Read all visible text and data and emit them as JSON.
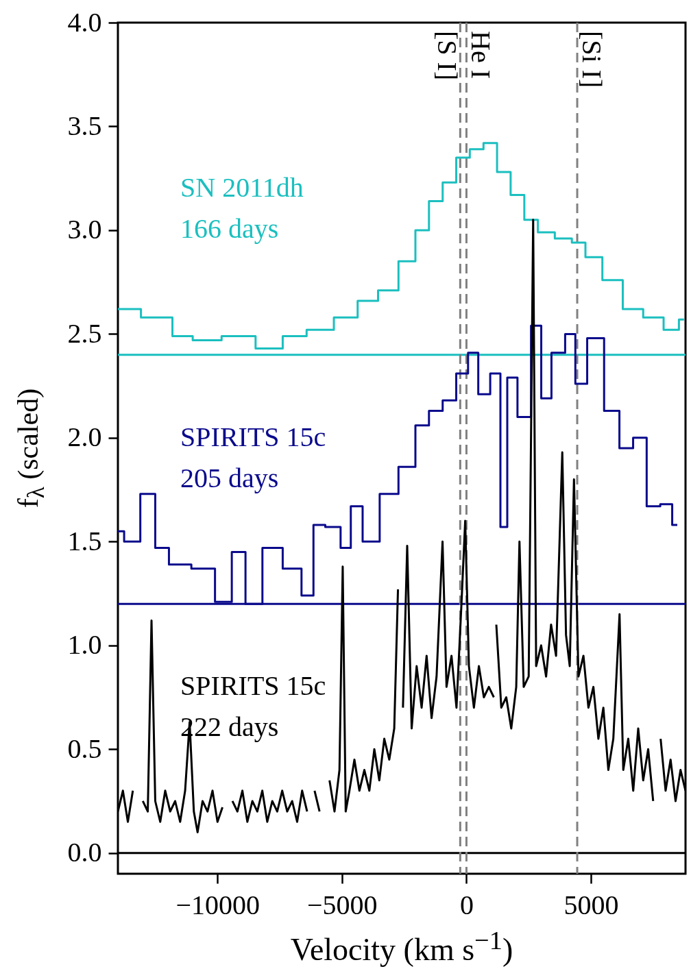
{
  "chart_data": {
    "type": "step",
    "xlabel": "Velocity (km s$^{−1}$)",
    "ylabel": "f$_{λ}$ (scaled)",
    "xlim": [
      -14000,
      8800
    ],
    "ylim": [
      -0.1,
      4.0
    ],
    "xticks": [
      {
        "value": -10000,
        "label": "−10000"
      },
      {
        "value": -5000,
        "label": "−5000"
      },
      0,
      5000
    ],
    "yticks": [
      {
        "value": 0,
        "label": "0.0"
      },
      {
        "value": 0.5,
        "label": "0.5"
      },
      {
        "value": 1,
        "label": "1.0"
      },
      {
        "value": 1.5,
        "label": "1.5"
      },
      {
        "value": 2,
        "label": "2.0"
      },
      {
        "value": 2.5,
        "label": "2.5"
      },
      {
        "value": 3,
        "label": "3.0"
      },
      {
        "value": 3.5,
        "label": "3.5"
      },
      {
        "value": 4,
        "label": "4.0"
      }
    ],
    "grid": false,
    "series": [
      {
        "name": "SN 2011dh\n166 days",
        "color": "#1bbfbf",
        "x": [
          -14000,
          -12150,
          -11470,
          -10520,
          -9150,
          -7790,
          -6970,
          -5870,
          -4780,
          -3960,
          -3140,
          -2320,
          -1780,
          -1230,
          -680,
          -140,
          410,
          960,
          1500,
          2050,
          2600,
          3140,
          3960,
          4510,
          5050,
          5870,
          6690,
          7510,
          8330,
          8740
        ],
        "values": [
          2.62,
          2.58,
          2.49,
          2.47,
          2.49,
          2.43,
          2.49,
          2.52,
          2.58,
          2.66,
          2.71,
          2.85,
          3.0,
          3.14,
          3.23,
          3.35,
          3.39,
          3.42,
          3.28,
          3.17,
          3.05,
          2.99,
          2.96,
          2.94,
          2.87,
          2.76,
          2.62,
          2.58,
          2.52,
          2.57
        ]
      },
      {
        "name": "SPIRITS 15c\n205 days",
        "color": "#0a0a8c",
        "x": [
          -14000,
          -13500,
          -12700,
          -12300,
          -11600,
          -10500,
          -9700,
          -9150,
          -8600,
          -7790,
          -6970,
          -6280,
          -6010,
          -5330,
          -4780,
          -4510,
          -3830,
          -3140,
          -2320,
          -1780,
          -1230,
          -680,
          -140,
          270,
          680,
          1230,
          1500,
          1780,
          2320,
          2870,
          3140,
          3690,
          4240,
          4510,
          5190,
          5870,
          6420,
          6970,
          7510,
          8060,
          8470
        ],
        "values": [
          1.55,
          1.5,
          1.73,
          1.47,
          1.39,
          1.37,
          1.21,
          1.45,
          1.2,
          1.47,
          1.37,
          1.24,
          1.58,
          1.57,
          1.47,
          1.67,
          1.5,
          1.73,
          1.86,
          2.06,
          2.13,
          2.18,
          2.31,
          2.41,
          2.21,
          2.31,
          1.57,
          2.29,
          2.1,
          2.54,
          2.19,
          2.41,
          2.5,
          2.26,
          2.48,
          2.13,
          1.95,
          2.0,
          1.67,
          1.68,
          1.58
        ]
      },
      {
        "name": "SPIRITS 15c\n222 days",
        "color": "#000000",
        "type": "line",
        "x": [
          -14000,
          -13800,
          -13600,
          -13400,
          -13200,
          -13000,
          -12800,
          -12650,
          -12500,
          -12300,
          -12100,
          -11900,
          -11700,
          -11500,
          -11300,
          -11120,
          -10950,
          -10800,
          -10600,
          -10400,
          -10200,
          -10000,
          -9800,
          -9560,
          -9400,
          -9200,
          -9000,
          -8800,
          -8600,
          -8400,
          -8200,
          -8000,
          -7800,
          -7600,
          -7400,
          -7200,
          -7000,
          -6800,
          -6600,
          -6400,
          -6280,
          -6100,
          -5900,
          -5700,
          -5500,
          -5300,
          -5100,
          -4970,
          -4850,
          -4700,
          -4500,
          -4300,
          -4100,
          -3900,
          -3700,
          -3500,
          -3300,
          -3100,
          -2900,
          -2750,
          -2700,
          -2550,
          -2380,
          -2200,
          -2000,
          -1800,
          -1600,
          -1400,
          -1200,
          -960,
          -800,
          -600,
          -400,
          -200,
          -50,
          100,
          300,
          500,
          700,
          900,
          1100,
          1150,
          1200,
          1400,
          1600,
          1800,
          2000,
          2130,
          2300,
          2500,
          2680,
          2800,
          3000,
          3200,
          3400,
          3600,
          3850,
          4000,
          4150,
          4320,
          4500,
          4700,
          4900,
          5100,
          5300,
          5500,
          5700,
          5900,
          6150,
          6300,
          6500,
          6700,
          6900,
          7100,
          7300,
          7500,
          7650,
          7800,
          8000,
          8200,
          8400,
          8600,
          8800
        ],
        "values": [
          0.2,
          0.3,
          0.15,
          0.3,
          null,
          0.25,
          0.2,
          1.12,
          0.25,
          0.15,
          0.3,
          0.2,
          0.25,
          0.15,
          0.3,
          0.63,
          0.2,
          0.1,
          0.25,
          0.2,
          0.3,
          0.15,
          0.22,
          null,
          0.25,
          0.2,
          0.3,
          0.15,
          0.25,
          0.2,
          0.3,
          0.15,
          0.25,
          0.2,
          0.3,
          0.2,
          0.25,
          0.15,
          0.3,
          0.2,
          null,
          0.3,
          0.2,
          null,
          0.35,
          0.2,
          0.4,
          1.38,
          0.2,
          0.3,
          0.45,
          0.3,
          0.4,
          0.3,
          0.5,
          0.35,
          0.55,
          0.45,
          0.6,
          1.27,
          null,
          0.7,
          1.48,
          0.6,
          0.9,
          0.7,
          0.95,
          0.65,
          0.85,
          1.5,
          0.8,
          0.95,
          0.7,
          1.2,
          1.6,
          0.9,
          0.7,
          0.9,
          0.75,
          0.8,
          0.75,
          null,
          1.1,
          0.7,
          0.75,
          0.6,
          0.8,
          1.5,
          0.8,
          0.85,
          3.05,
          0.9,
          1.0,
          0.85,
          1.1,
          0.95,
          1.93,
          1.05,
          0.9,
          1.8,
          0.85,
          0.95,
          0.7,
          0.8,
          0.55,
          0.7,
          0.4,
          0.55,
          1.15,
          0.4,
          0.55,
          0.3,
          0.6,
          0.35,
          0.5,
          0.25,
          null,
          0.55,
          0.3,
          0.45,
          0.25,
          0.4,
          0.3
        ]
      }
    ],
    "ref_lines": [
      {
        "axis": "y",
        "value": 2.4,
        "color": "#1bbfbf"
      },
      {
        "axis": "y",
        "value": 1.2,
        "color": "#0a0a8c"
      },
      {
        "axis": "y",
        "value": 0,
        "color": "#000000"
      },
      {
        "axis": "x",
        "value": -250,
        "label": "[S I]",
        "color": "#808080",
        "line_style": "dashed"
      },
      {
        "axis": "x",
        "value": 0,
        "label": "He I",
        "color": "#808080",
        "line_style": "dashed"
      },
      {
        "axis": "x",
        "value": 4450,
        "label": "[Si I]",
        "color": "#808080",
        "line_style": "dashed"
      }
    ]
  }
}
